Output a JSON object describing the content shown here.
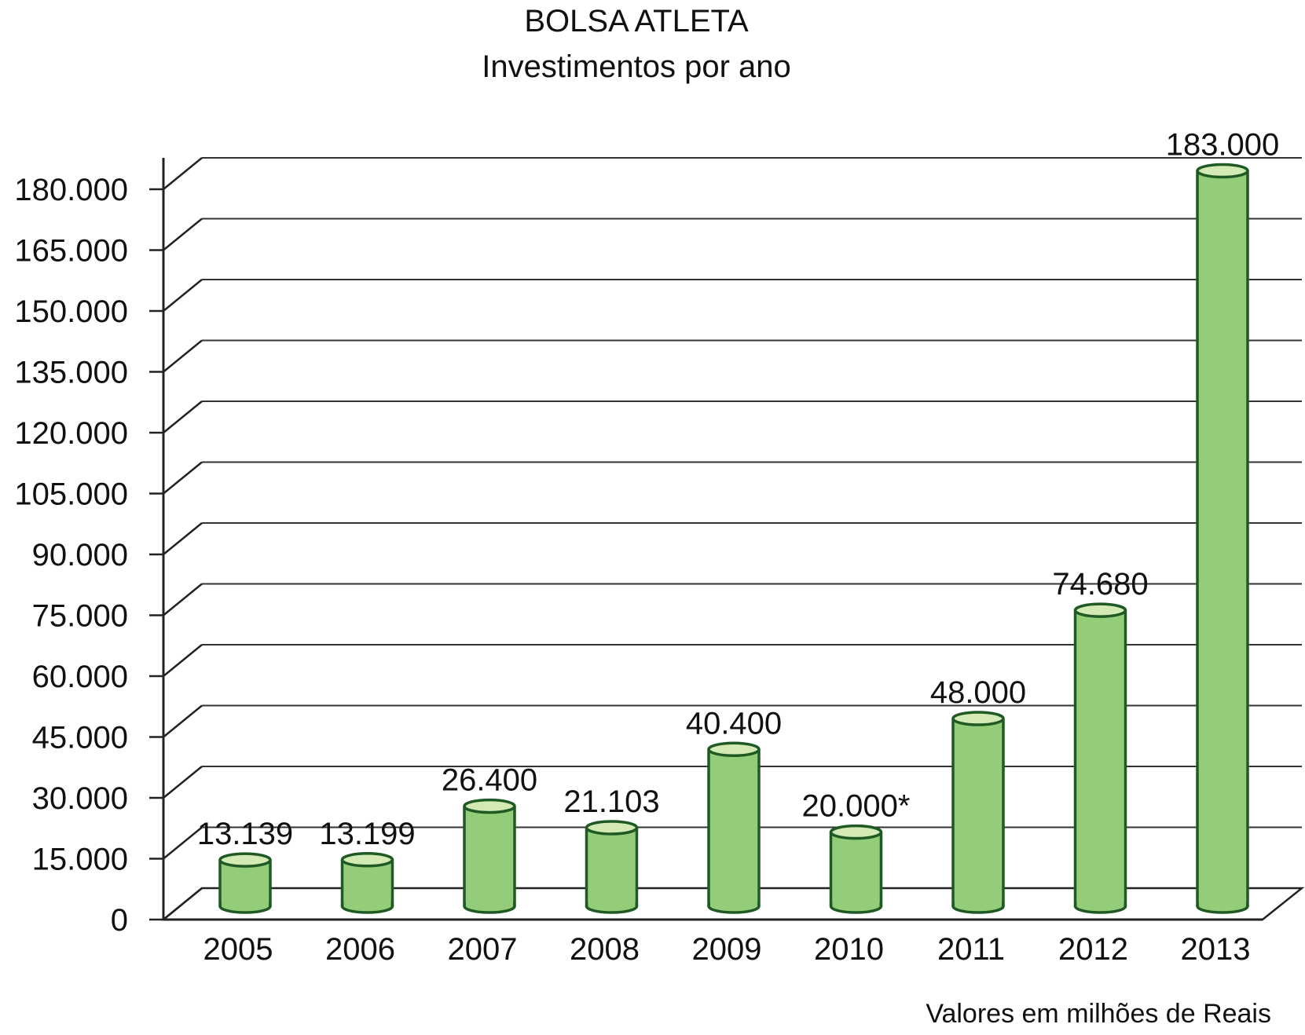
{
  "chart_data": {
    "type": "bar",
    "title": "BOLSA ATLETA",
    "subtitle": "Investimentos por ano",
    "note": "Valores em milhões de Reais",
    "categories": [
      "2005",
      "2006",
      "2007",
      "2008",
      "2009",
      "2010",
      "2011",
      "2012",
      "2013"
    ],
    "values": [
      13139,
      13199,
      26400,
      21103,
      40400,
      20000,
      48000,
      74680,
      183000
    ],
    "value_labels": [
      "13.139",
      "13.199",
      "26.400",
      "21.103",
      "40.400",
      "20.000*",
      "48.000",
      "74.680",
      "183.000"
    ],
    "y_ticks": [
      0,
      15000,
      30000,
      45000,
      60000,
      75000,
      90000,
      105000,
      120000,
      135000,
      150000,
      165000,
      180000
    ],
    "y_tick_labels": [
      "0",
      "15.000",
      "30.000",
      "45.000",
      "60.000",
      "75.000",
      "90.000",
      "105.000",
      "120.000",
      "135.000",
      "150.000",
      "165.000",
      "180.000"
    ],
    "ylim": [
      0,
      180000
    ],
    "grid": true,
    "colors": {
      "bar_fill": "#93cd7a",
      "bar_top": "#d3eab4",
      "bar_stroke": "#1f5a24",
      "grid": "#333333",
      "axis": "#222222"
    }
  }
}
